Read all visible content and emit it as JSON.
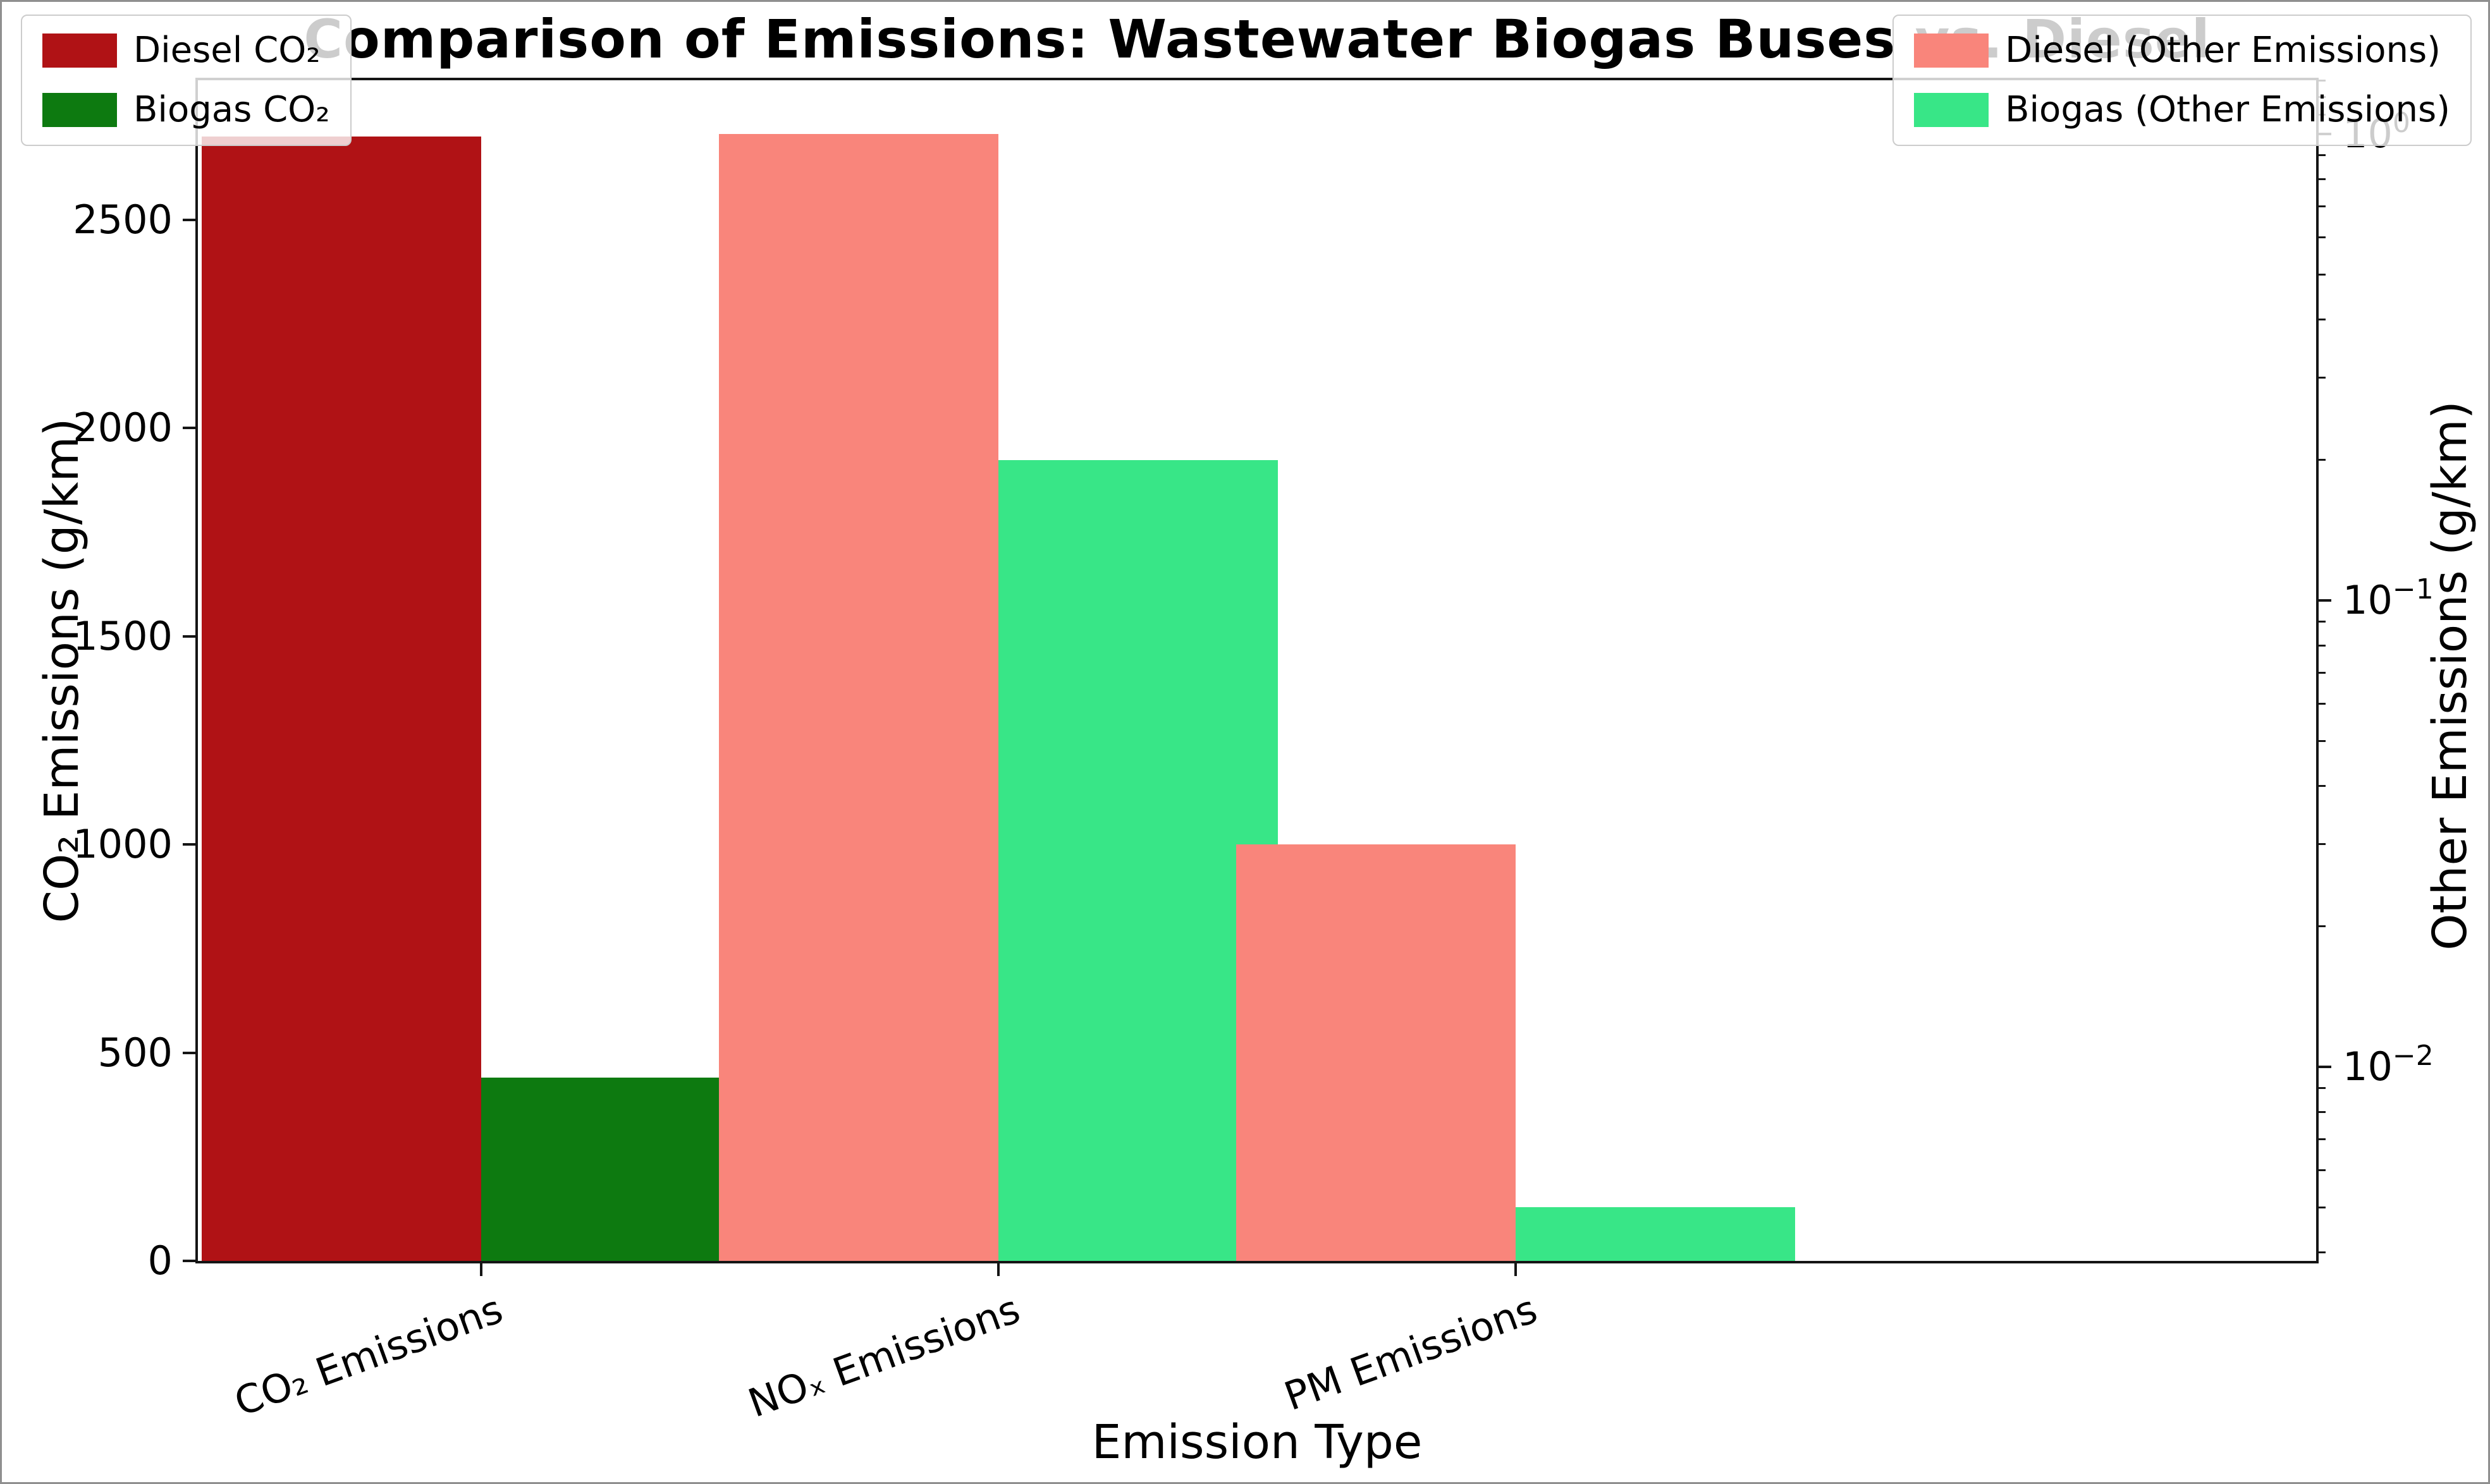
{
  "title": "Comparison of Emissions: Wastewater Biogas Buses vs. Diesel",
  "chart_data": {
    "type": "bar",
    "title": "Comparison of Emissions: Wastewater Biogas Buses vs. Diesel",
    "categories": [
      "CO₂ Emissions",
      "NOₓ Emissions",
      "PM Emissions"
    ],
    "xlabel": "Emission Type",
    "left_axis": {
      "label": "CO₂ Emissions (g/km)",
      "scale": "linear",
      "range": [
        0,
        2835
      ],
      "ticks": [
        "0",
        "500",
        "1000",
        "1500",
        "2000",
        "2500"
      ],
      "tick_values": [
        0,
        500,
        1000,
        1500,
        2000,
        2500
      ]
    },
    "right_axis": {
      "label": "Other Emissions (g/km)",
      "scale": "log",
      "range": [
        0.00384,
        1.303
      ],
      "major_ticks": [
        {
          "value": 1,
          "base": "10",
          "exp": "0"
        },
        {
          "value": 0.1,
          "base": "10",
          "exp": "−1"
        },
        {
          "value": 0.01,
          "base": "10",
          "exp": "−2"
        }
      ],
      "minor_tick_values": [
        1.3,
        1.2,
        1.1,
        0.9,
        0.8,
        0.7,
        0.6,
        0.5,
        0.4,
        0.3,
        0.2,
        0.09,
        0.08,
        0.07,
        0.06,
        0.05,
        0.04,
        0.03,
        0.02,
        0.009,
        0.008,
        0.007,
        0.006,
        0.005,
        0.004
      ]
    },
    "series": [
      {
        "name": "Diesel CO₂",
        "axis": "left",
        "color": "#b01215",
        "values": [
          2700,
          null,
          null
        ]
      },
      {
        "name": "Biogas CO₂",
        "axis": "left",
        "color": "#0d7a10",
        "values": [
          440,
          null,
          null
        ]
      },
      {
        "name": "Diesel (Other Emissions)",
        "axis": "right",
        "color": "#f9857b",
        "values": [
          null,
          1.0,
          0.03
        ]
      },
      {
        "name": "Biogas (Other Emissions)",
        "axis": "right",
        "color": "#38e687",
        "values": [
          null,
          0.2,
          0.005
        ]
      }
    ],
    "bars": [
      {
        "category_index": 0,
        "slot": "left",
        "series": "Diesel CO₂",
        "axis": "left",
        "value": 2700,
        "color": "#b01215"
      },
      {
        "category_index": 0,
        "slot": "right",
        "series": "Biogas CO₂",
        "axis": "left",
        "value": 440,
        "color": "#0d7a10"
      },
      {
        "category_index": 1,
        "slot": "left",
        "series": "Diesel (Other Emissions)",
        "axis": "right",
        "value": 1.0,
        "color": "#f9857b"
      },
      {
        "category_index": 1,
        "slot": "right",
        "series": "Biogas (Other Emissions)",
        "axis": "right",
        "value": 0.2,
        "color": "#38e687"
      },
      {
        "category_index": 2,
        "slot": "left",
        "series": "Diesel (Other Emissions)",
        "axis": "right",
        "value": 0.03,
        "color": "#f9857b"
      },
      {
        "category_index": 2,
        "slot": "right",
        "series": "Biogas (Other Emissions)",
        "axis": "right",
        "value": 0.005,
        "color": "#38e687"
      }
    ],
    "legend_co2": {
      "position": "upper left",
      "items": [
        {
          "label": "Diesel CO₂",
          "color": "#b01215"
        },
        {
          "label": "Biogas CO₂",
          "color": "#0d7a10"
        }
      ]
    },
    "legend_other": {
      "position": "upper right",
      "items": [
        {
          "label": "Diesel (Other Emissions)",
          "color": "#f9857b"
        },
        {
          "label": "Biogas (Other Emissions)",
          "color": "#38e687"
        }
      ]
    },
    "layout": {
      "grid": false,
      "bar_width_fraction": 0.132,
      "x_margin_fraction": 0.5475
    }
  }
}
